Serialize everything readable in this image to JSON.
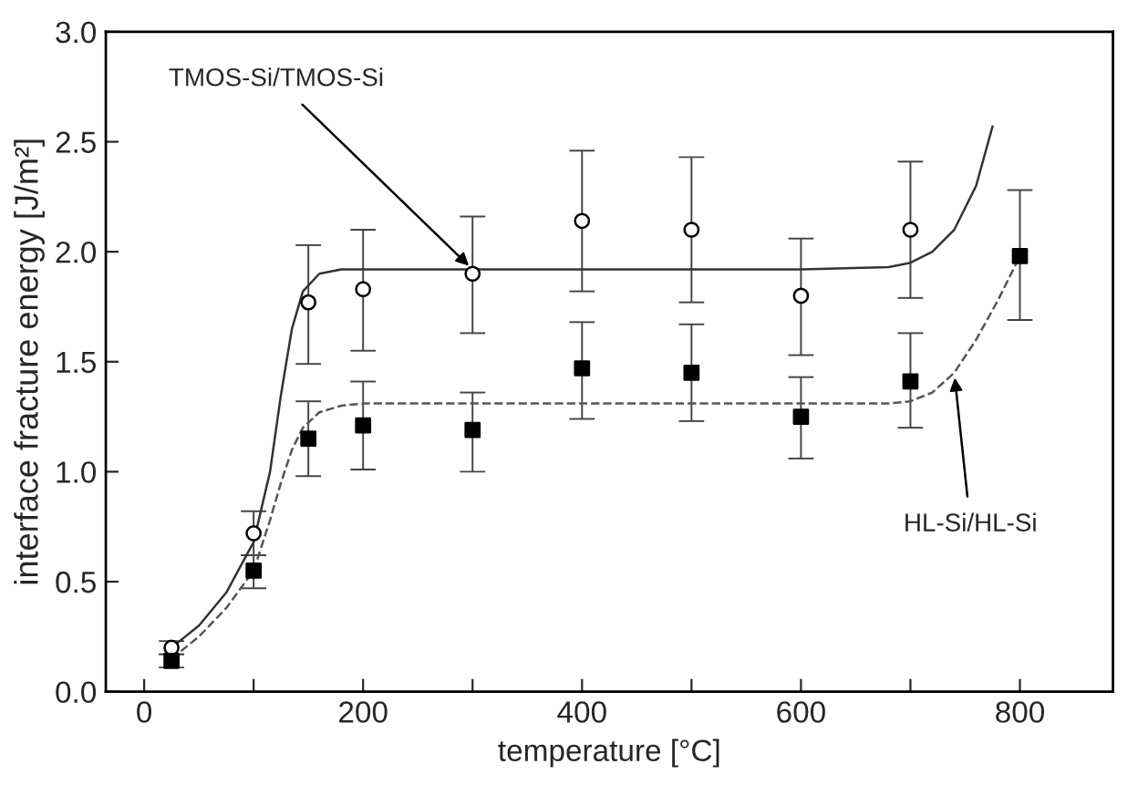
{
  "chart_data": {
    "type": "scatter",
    "xlabel": "temperature [°C]",
    "ylabel": "interface fracture energy [J/m²]",
    "xlim": [
      -35,
      885
    ],
    "ylim": [
      0,
      3
    ],
    "xticks": [
      0,
      {
        "value": 100,
        "label": null
      },
      200,
      {
        "value": 300,
        "label": null
      },
      400,
      {
        "value": 500,
        "label": null
      },
      600,
      {
        "value": 700,
        "label": null
      },
      800
    ],
    "yticks": [
      {
        "value": 0,
        "label": "0.0"
      },
      0.5,
      {
        "value": 1,
        "label": "1.0"
      },
      1.5,
      {
        "value": 2,
        "label": "2.0"
      },
      2.5,
      {
        "value": 3,
        "label": "3.0"
      }
    ],
    "grid": false,
    "legend": false,
    "series": [
      {
        "marker": "circle",
        "color": "#ffffff",
        "x": [
          25,
          100,
          150,
          200,
          300,
          400,
          500,
          600,
          700
        ],
        "values": [
          0.2,
          0.72,
          1.77,
          1.83,
          1.9,
          2.14,
          2.1,
          1.8,
          2.1
        ],
        "errors": [
          0.03,
          [
            0.62,
            0.82
          ],
          [
            1.49,
            2.03
          ],
          [
            1.55,
            2.1
          ],
          [
            1.63,
            2.16
          ],
          [
            1.82,
            2.46
          ],
          [
            1.77,
            2.43
          ],
          [
            1.53,
            2.06
          ],
          [
            1.79,
            2.41
          ]
        ]
      },
      {
        "marker": "square",
        "color": "#000000",
        "x": [
          25,
          100,
          150,
          200,
          300,
          400,
          500,
          600,
          700,
          800
        ],
        "values": [
          0.14,
          0.55,
          1.15,
          1.21,
          1.19,
          1.47,
          1.45,
          1.25,
          1.41,
          1.98
        ],
        "errors": [
          0.03,
          [
            0.47,
            0.62
          ],
          [
            0.98,
            1.32
          ],
          [
            1.01,
            1.41
          ],
          [
            1.0,
            1.36
          ],
          [
            1.24,
            1.68
          ],
          [
            1.23,
            1.67
          ],
          [
            1.06,
            1.43
          ],
          [
            1.2,
            1.63
          ],
          [
            1.69,
            2.28
          ]
        ]
      },
      {
        "type": "line",
        "color": "#333333",
        "line_style": "solid",
        "x": [
          25,
          50,
          75,
          100,
          115,
          125,
          135,
          145,
          160,
          180,
          300,
          600,
          680,
          700,
          720,
          740,
          760,
          775
        ],
        "values": [
          0.2,
          0.3,
          0.45,
          0.68,
          1.0,
          1.35,
          1.65,
          1.82,
          1.9,
          1.92,
          1.92,
          1.92,
          1.93,
          1.95,
          2.0,
          2.1,
          2.3,
          2.57
        ]
      },
      {
        "type": "line",
        "color": "#555555",
        "line_style": "dashed",
        "x": [
          25,
          50,
          75,
          100,
          115,
          125,
          135,
          145,
          160,
          180,
          200,
          600,
          680,
          700,
          720,
          740,
          760,
          780,
          800
        ],
        "values": [
          0.15,
          0.25,
          0.38,
          0.55,
          0.78,
          0.95,
          1.1,
          1.2,
          1.27,
          1.3,
          1.31,
          1.31,
          1.31,
          1.32,
          1.36,
          1.45,
          1.6,
          1.78,
          1.98
        ]
      }
    ],
    "annotations": [
      {
        "text": "TMOS-Si/TMOS-Si",
        "x": 300,
        "y": 1.92
      },
      {
        "text": "HL-Si/HL-Si",
        "x": 740,
        "y": 1.45
      }
    ]
  }
}
